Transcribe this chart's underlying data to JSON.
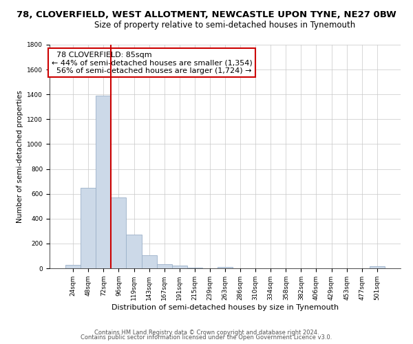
{
  "title1": "78, CLOVERFIELD, WEST ALLOTMENT, NEWCASTLE UPON TYNE, NE27 0BW",
  "title2": "Size of property relative to semi-detached houses in Tynemouth",
  "xlabel": "Distribution of semi-detached houses by size in Tynemouth",
  "ylabel": "Number of semi-detached properties",
  "bar_labels": [
    "24sqm",
    "48sqm",
    "72sqm",
    "96sqm",
    "119sqm",
    "143sqm",
    "167sqm",
    "191sqm",
    "215sqm",
    "239sqm",
    "263sqm",
    "286sqm",
    "310sqm",
    "334sqm",
    "358sqm",
    "382sqm",
    "406sqm",
    "429sqm",
    "453sqm",
    "477sqm",
    "501sqm"
  ],
  "bar_values": [
    30,
    650,
    1390,
    570,
    270,
    105,
    35,
    20,
    5,
    0,
    10,
    0,
    0,
    0,
    0,
    0,
    0,
    0,
    0,
    0,
    15
  ],
  "bar_color": "#ccd9e8",
  "bar_edge_color": "#9ab0c8",
  "property_line_label": "78 CLOVERFIELD: 85sqm",
  "pct_smaller": 44,
  "pct_larger": 56,
  "count_smaller": 1354,
  "count_larger": 1724,
  "annotation_box_color": "#ffffff",
  "annotation_box_edge": "#cc0000",
  "line_color": "#cc0000",
  "ylim": [
    0,
    1800
  ],
  "yticks": [
    0,
    200,
    400,
    600,
    800,
    1000,
    1200,
    1400,
    1600,
    1800
  ],
  "footer1": "Contains HM Land Registry data © Crown copyright and database right 2024.",
  "footer2": "Contains public sector information licensed under the Open Government Licence v3.0.",
  "grid_color": "#c8c8c8",
  "bg_color": "#ffffff",
  "title1_fontsize": 9.5,
  "title2_fontsize": 8.5,
  "xlabel_fontsize": 8,
  "ylabel_fontsize": 7.5,
  "tick_fontsize": 6.5,
  "annotation_fontsize": 8,
  "footer_fontsize": 6
}
